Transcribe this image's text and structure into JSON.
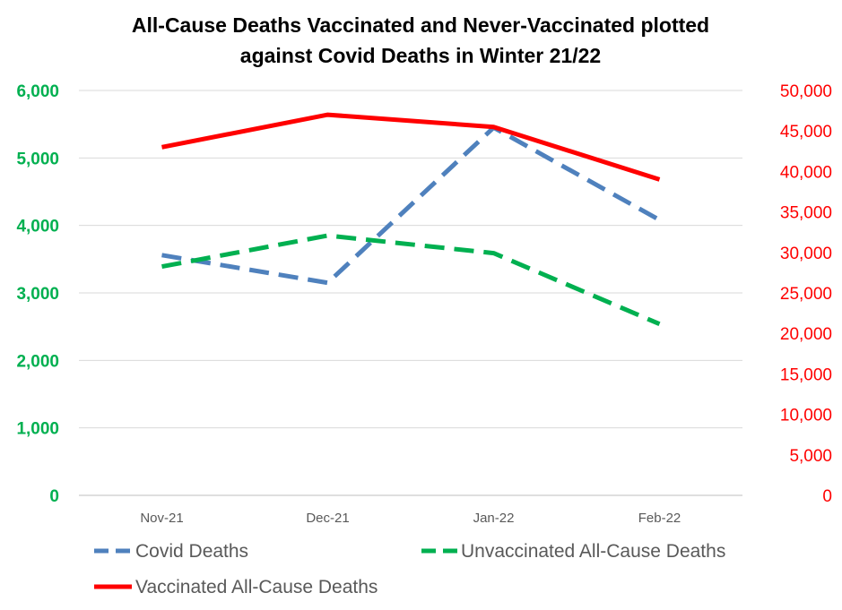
{
  "chart_data": {
    "type": "line",
    "title_lines": [
      "All-Cause Deaths Vaccinated and Never-Vaccinated plotted",
      "against Covid Deaths in Winter 21/22"
    ],
    "categories": [
      "Nov-21",
      "Dec-21",
      "Jan-22",
      "Feb-22"
    ],
    "y_left": {
      "ylim": [
        0,
        6000
      ],
      "ticks": [
        0,
        1000,
        2000,
        3000,
        4000,
        5000,
        6000
      ],
      "tick_labels": [
        "0",
        "1,000",
        "2,000",
        "3,000",
        "4,000",
        "5,000",
        "6,000"
      ],
      "color": "#00B050"
    },
    "y_right": {
      "ylim": [
        0,
        50000
      ],
      "ticks": [
        0,
        5000,
        10000,
        15000,
        20000,
        25000,
        30000,
        35000,
        40000,
        45000,
        50000
      ],
      "tick_labels": [
        "0",
        "5,000",
        "10,000",
        "15,000",
        "20,000",
        "25,000",
        "30,000",
        "35,000",
        "40,000",
        "45,000",
        "50,000"
      ],
      "color": "#FF0000"
    },
    "grid": true,
    "series": [
      {
        "name": "Covid Deaths",
        "axis": "left",
        "values": [
          3560,
          3150,
          5450,
          4080
        ],
        "color": "#4F81BD",
        "style": "dashed"
      },
      {
        "name": "Unvaccinated All-Cause Deaths",
        "axis": "left",
        "values": [
          3390,
          3850,
          3590,
          2540
        ],
        "color": "#00B050",
        "style": "dashed"
      },
      {
        "name": "Vaccinated All-Cause Deaths",
        "axis": "right",
        "values": [
          43000,
          47000,
          45500,
          39000
        ],
        "color": "#FF0000",
        "style": "solid"
      }
    ],
    "legend_position": "bottom"
  }
}
